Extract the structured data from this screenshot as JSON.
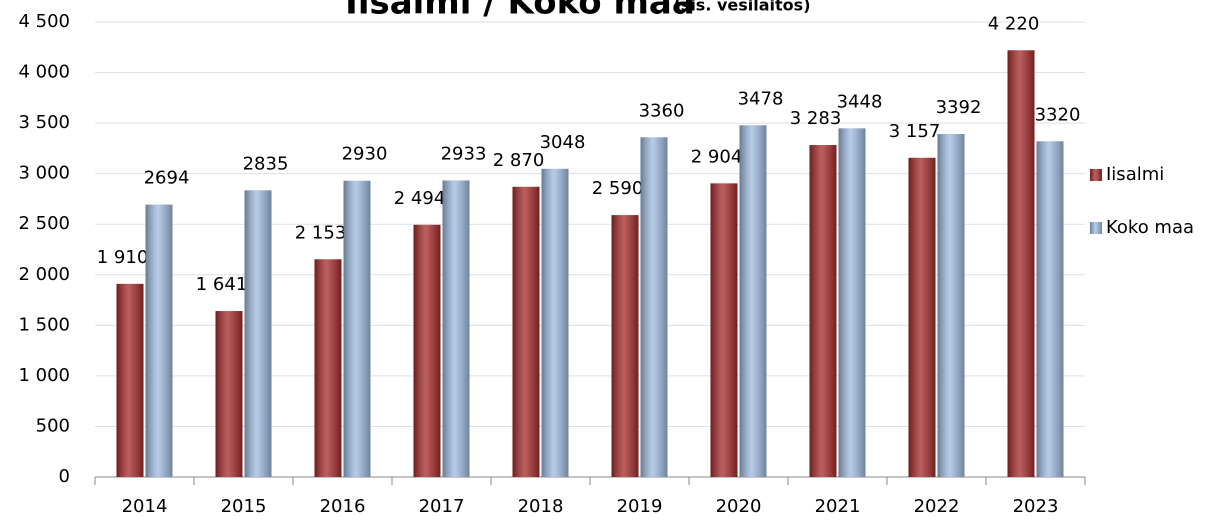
{
  "chart_data": {
    "type": "bar",
    "title": "Iisalmi / Koko maa",
    "subtitle": "(sis. vesilaitos)",
    "categories": [
      "2014",
      "2015",
      "2016",
      "2017",
      "2018",
      "2019",
      "2020",
      "2021",
      "2022",
      "2023"
    ],
    "series": [
      {
        "name": "Iisalmi",
        "color": "#a52a2a",
        "values": [
          1910,
          1641,
          2153,
          2494,
          2870,
          2590,
          2904,
          3283,
          3157,
          4220
        ],
        "value_labels": [
          "1 910",
          "1 641",
          "2 153",
          "2 494",
          "2 870",
          "2 590",
          "2 904",
          "3 283",
          "3 157",
          "4 220"
        ]
      },
      {
        "name": "Koko maa",
        "color": "#9fbbe0",
        "values": [
          2694,
          2835,
          2930,
          2933,
          3048,
          3360,
          3478,
          3448,
          3392,
          3320
        ]
      }
    ],
    "ylim": [
      0,
      4500
    ],
    "yticks": [
      0,
      500,
      {
        "value": 1000,
        "label": "1 000"
      },
      {
        "value": 1500,
        "label": "1 500"
      },
      {
        "value": 2000,
        "label": "2 000"
      },
      {
        "value": 2500,
        "label": "2 500"
      },
      {
        "value": 3000,
        "label": "3 000"
      },
      {
        "value": 3500,
        "label": "3 500"
      },
      {
        "value": 4000,
        "label": "4 000"
      },
      {
        "value": 4500,
        "label": "4 500"
      }
    ],
    "grid": true,
    "legend": "right"
  }
}
